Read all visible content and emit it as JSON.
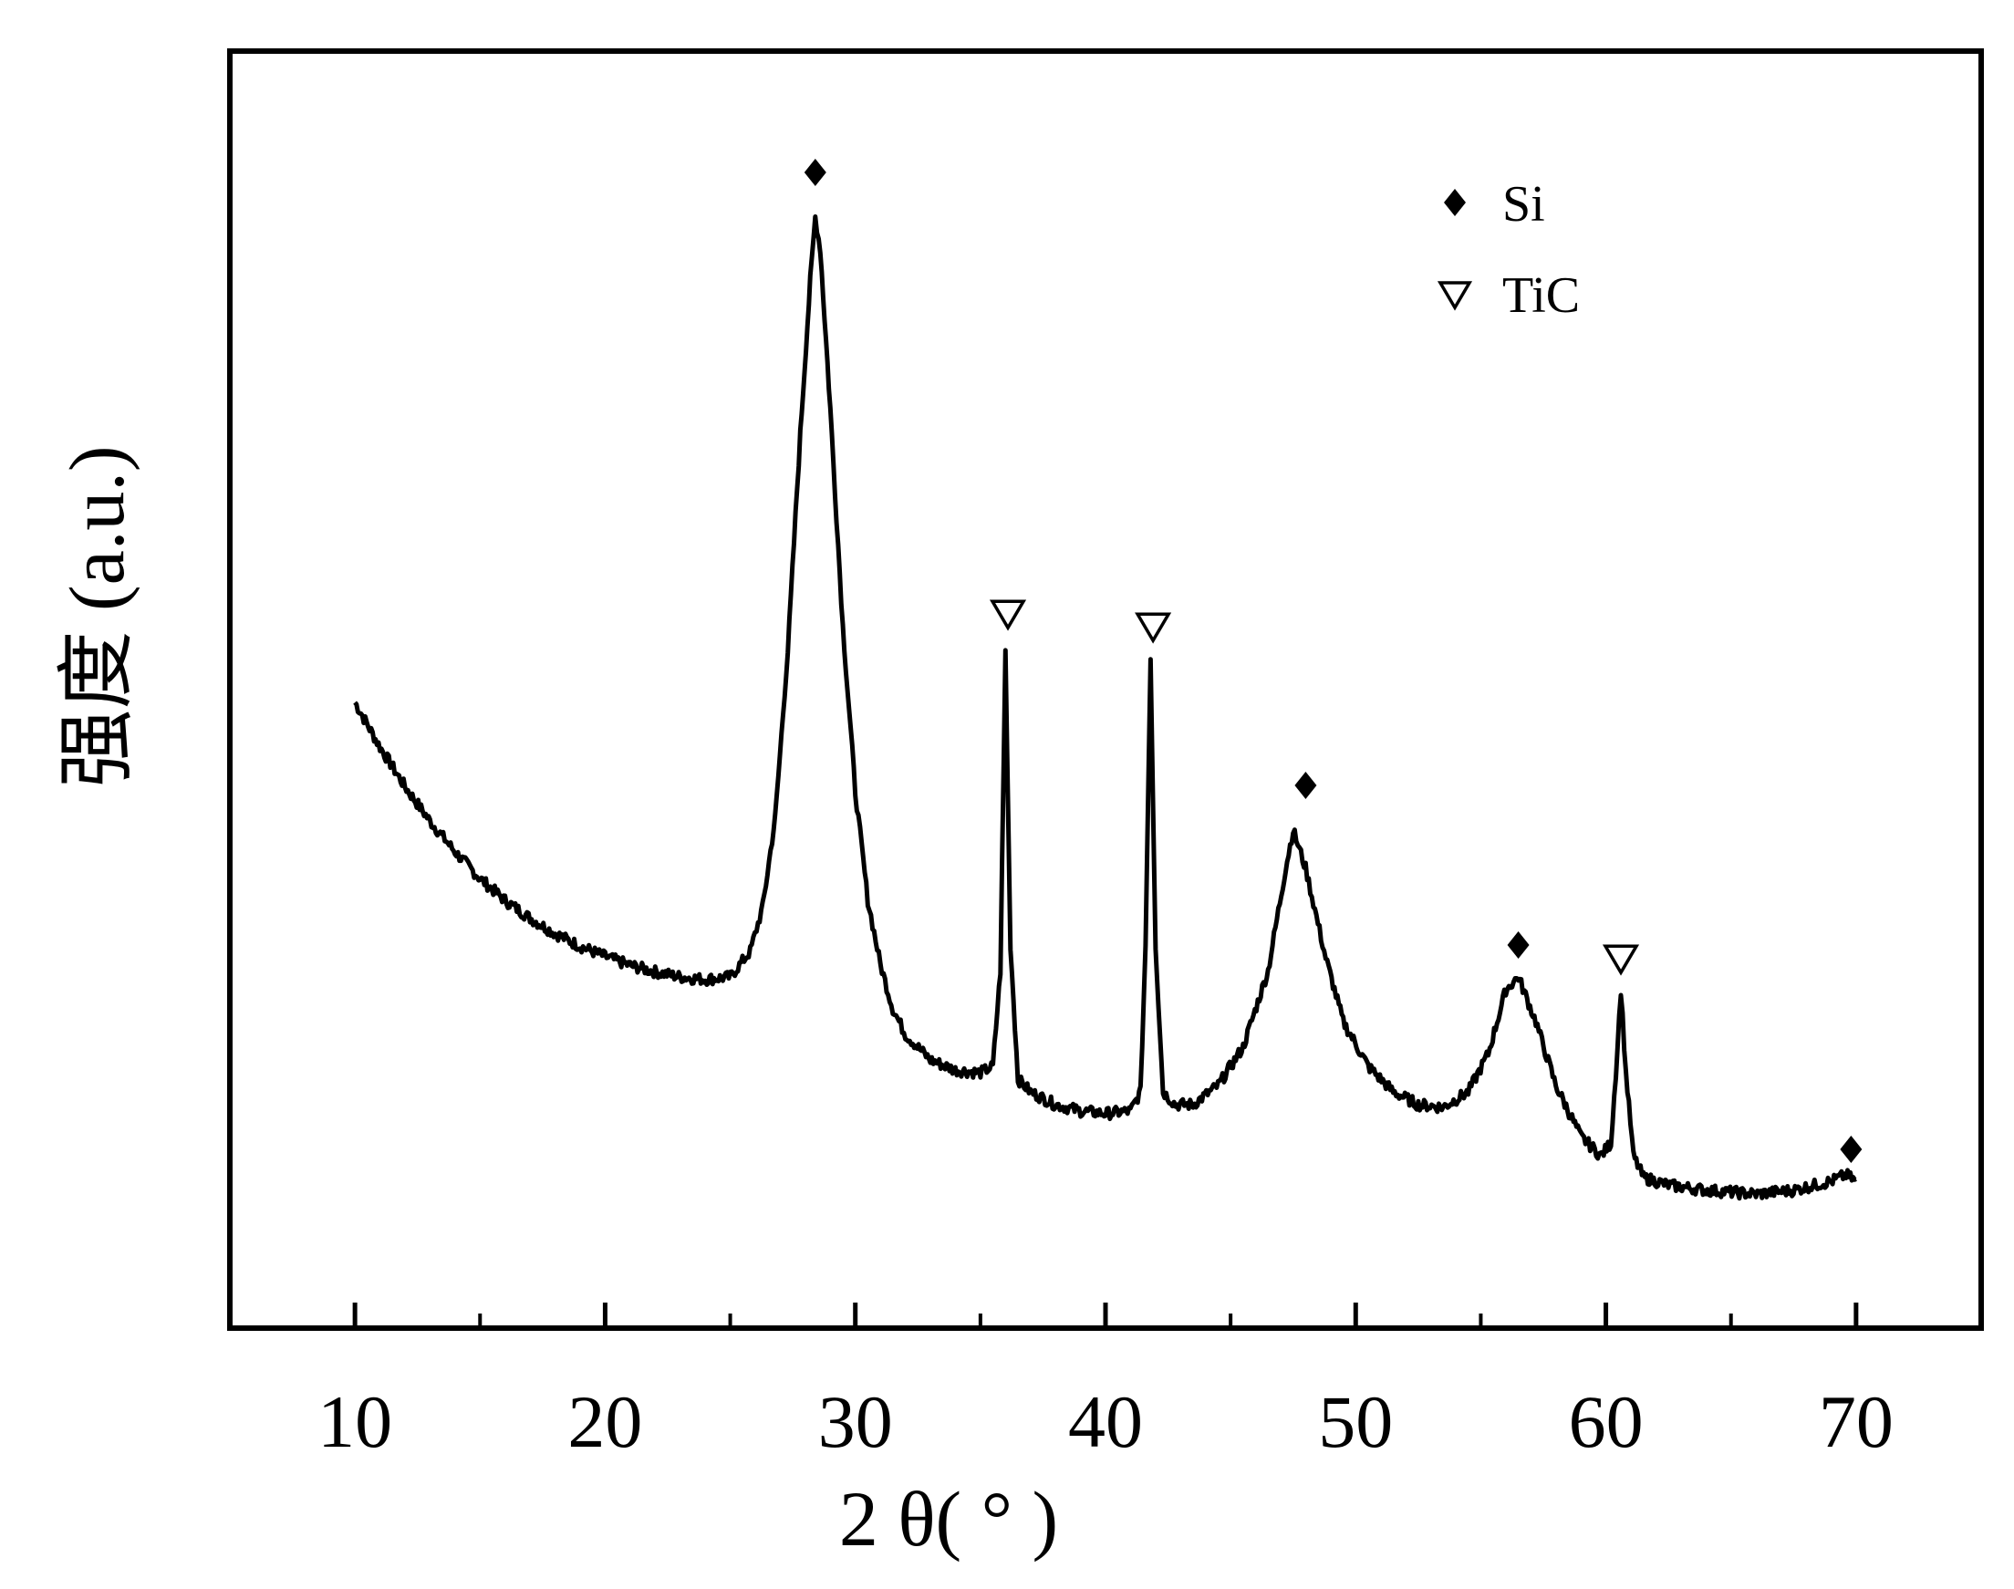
{
  "chart_data": {
    "type": "line",
    "title": "",
    "xlabel": "2 θ( ° )",
    "ylabel": "强度 (a.u.)",
    "xlim": [
      5,
      75
    ],
    "ylim": [
      0,
      100
    ],
    "x_ticks": [
      10,
      20,
      30,
      40,
      50,
      60,
      70
    ],
    "x_minor_ticks": [
      15,
      25,
      35,
      45,
      55,
      65
    ],
    "grid": false,
    "y_ticks_shown": false,
    "legend": {
      "position": "top-right",
      "entries": [
        {
          "marker": "filled-diamond",
          "label": "Si"
        },
        {
          "marker": "open-down-triangle",
          "label": "TiC"
        }
      ]
    },
    "series": [
      {
        "name": "",
        "color": "#000000",
        "points": [
          [
            10,
            49.0
          ],
          [
            11,
            45.5
          ],
          [
            12,
            42.4
          ],
          [
            13,
            39.7
          ],
          [
            14,
            37.3
          ],
          [
            15,
            35.2
          ],
          [
            16,
            33.5
          ],
          [
            17,
            32.1
          ],
          [
            18,
            30.9
          ],
          [
            19,
            29.9
          ],
          [
            20,
            29.1
          ],
          [
            21,
            28.4
          ],
          [
            22,
            27.9
          ],
          [
            23,
            27.5
          ],
          [
            24,
            27.3
          ],
          [
            25,
            27.5
          ],
          [
            25.8,
            29.5
          ],
          [
            26.3,
            33.0
          ],
          [
            26.8,
            40.0
          ],
          [
            27.3,
            53.0
          ],
          [
            27.8,
            70.0
          ],
          [
            28.2,
            82.0
          ],
          [
            28.4,
            87.0
          ],
          [
            28.6,
            84.5
          ],
          [
            29.0,
            72.0
          ],
          [
            29.5,
            55.0
          ],
          [
            30.0,
            42.0
          ],
          [
            30.5,
            33.5
          ],
          [
            31.0,
            28.5
          ],
          [
            31.5,
            25.0
          ],
          [
            32.0,
            23.0
          ],
          [
            33.0,
            21.0
          ],
          [
            34.0,
            20.2
          ],
          [
            35.0,
            20.0
          ],
          [
            35.5,
            20.5
          ],
          [
            35.8,
            28.0
          ],
          [
            36.0,
            53.0
          ],
          [
            36.2,
            30.0
          ],
          [
            36.5,
            19.5
          ],
          [
            37.0,
            18.5
          ],
          [
            38.0,
            17.5
          ],
          [
            39.0,
            17.0
          ],
          [
            40.0,
            16.8
          ],
          [
            41.0,
            17.0
          ],
          [
            41.4,
            18.5
          ],
          [
            41.6,
            30.0
          ],
          [
            41.8,
            52.5
          ],
          [
            42.0,
            30.0
          ],
          [
            42.3,
            18.5
          ],
          [
            42.8,
            17.5
          ],
          [
            43.5,
            17.5
          ],
          [
            44.5,
            19.0
          ],
          [
            45.5,
            22.0
          ],
          [
            46.5,
            28.0
          ],
          [
            47.2,
            36.0
          ],
          [
            47.5,
            39.0
          ],
          [
            48.0,
            36.0
          ],
          [
            48.8,
            29.0
          ],
          [
            49.5,
            24.0
          ],
          [
            50.5,
            20.5
          ],
          [
            51.5,
            18.5
          ],
          [
            52.5,
            17.5
          ],
          [
            53.5,
            17.3
          ],
          [
            54.5,
            18.5
          ],
          [
            55.3,
            21.5
          ],
          [
            56.0,
            26.5
          ],
          [
            56.5,
            27.5
          ],
          [
            57.2,
            24.0
          ],
          [
            58.0,
            19.0
          ],
          [
            59.0,
            15.0
          ],
          [
            59.8,
            13.5
          ],
          [
            60.2,
            14.5
          ],
          [
            60.4,
            20.0
          ],
          [
            60.6,
            26.5
          ],
          [
            60.8,
            20.0
          ],
          [
            61.1,
            13.5
          ],
          [
            61.5,
            11.8
          ],
          [
            62.5,
            11.2
          ],
          [
            64.0,
            10.8
          ],
          [
            66.0,
            10.5
          ],
          [
            67.5,
            10.8
          ],
          [
            69.0,
            11.5
          ],
          [
            69.6,
            12.0
          ],
          [
            70.0,
            11.5
          ]
        ]
      }
    ],
    "peak_markers": [
      {
        "x": 28.4,
        "y": 90.5,
        "phase": "Si"
      },
      {
        "x": 36.1,
        "y": 56.0,
        "phase": "TiC"
      },
      {
        "x": 41.9,
        "y": 55.0,
        "phase": "TiC"
      },
      {
        "x": 48.0,
        "y": 42.5,
        "phase": "Si"
      },
      {
        "x": 56.5,
        "y": 30.0,
        "phase": "Si"
      },
      {
        "x": 60.6,
        "y": 29.0,
        "phase": "TiC"
      },
      {
        "x": 69.8,
        "y": 14.0,
        "phase": "Si"
      }
    ]
  }
}
